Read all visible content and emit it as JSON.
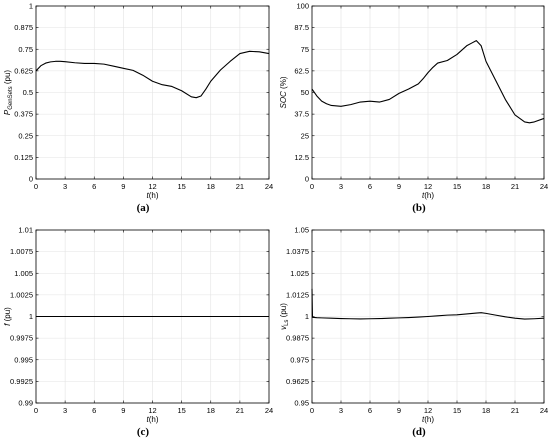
{
  "chart_data": [
    {
      "type": "line",
      "panel_label": "(a)",
      "ylabel": "P_GenSets (pu)",
      "ylabel_main": "P",
      "ylabel_sub": "GenSets",
      "ylabel_unit": " (pu)",
      "xlabel_italic": "t",
      "xlabel_rest": "(h)",
      "xlim": [
        0,
        24
      ],
      "ylim": [
        0,
        1
      ],
      "xticks": [
        0,
        3,
        6,
        9,
        12,
        15,
        18,
        21,
        24
      ],
      "xtick_labels": [
        "0",
        "3",
        "6",
        "9",
        "12",
        "15",
        "18",
        "21",
        "24"
      ],
      "yticks": [
        0,
        0.125,
        0.25,
        0.375,
        0.5,
        0.625,
        0.75,
        0.875,
        1
      ],
      "ytick_labels": [
        "0",
        "0.125",
        "0.25",
        "0.375",
        "0.5",
        "0.625",
        "0.75",
        "0.875",
        "1"
      ],
      "grid": true,
      "series": [
        {
          "x": [
            0,
            0.5,
            1,
            1.5,
            2,
            2.5,
            3,
            4,
            5,
            6,
            7,
            8,
            9,
            10,
            11,
            12,
            13,
            14,
            15,
            16,
            16.5,
            17,
            17.5,
            18,
            19,
            20,
            21,
            22,
            23,
            24
          ],
          "values": [
            0.625,
            0.655,
            0.67,
            0.677,
            0.68,
            0.68,
            0.678,
            0.672,
            0.668,
            0.668,
            0.664,
            0.652,
            0.64,
            0.628,
            0.6,
            0.565,
            0.545,
            0.535,
            0.51,
            0.475,
            0.47,
            0.48,
            0.52,
            0.565,
            0.63,
            0.68,
            0.725,
            0.738,
            0.735,
            0.725
          ]
        }
      ]
    },
    {
      "type": "line",
      "panel_label": "(b)",
      "ylabel": "SOC (%)",
      "ylabel_main": "SOC",
      "ylabel_sub": "",
      "ylabel_unit": " (%)",
      "xlabel_italic": "t",
      "xlabel_rest": "(h)",
      "xlim": [
        0,
        24
      ],
      "ylim": [
        0,
        100
      ],
      "xticks": [
        0,
        3,
        6,
        9,
        12,
        15,
        18,
        21,
        24
      ],
      "xtick_labels": [
        "0",
        "3",
        "6",
        "9",
        "12",
        "15",
        "18",
        "21",
        "24"
      ],
      "yticks": [
        0,
        12.5,
        25,
        37.5,
        50,
        62.5,
        75,
        87.5,
        100
      ],
      "ytick_labels": [
        "0",
        "12.5",
        "25",
        "37.5",
        "50",
        "62.5",
        "75",
        "87.5",
        "100"
      ],
      "grid": true,
      "series": [
        {
          "x": [
            0,
            0.5,
            1,
            1.5,
            2,
            3,
            4,
            5,
            6,
            7,
            8,
            9,
            10,
            11,
            11.5,
            12,
            12.5,
            13,
            14,
            15,
            16,
            16.5,
            17,
            17.5,
            18,
            19,
            20,
            21,
            22,
            22.5,
            23,
            24
          ],
          "values": [
            52,
            48,
            45,
            43.5,
            42.5,
            42,
            43,
            44.5,
            45,
            44.5,
            46,
            49.5,
            52,
            55,
            58,
            61.5,
            64.5,
            67,
            68.5,
            72,
            77,
            78.5,
            80,
            77,
            68,
            57,
            46,
            37,
            33,
            32.5,
            33,
            35
          ]
        }
      ]
    },
    {
      "type": "line",
      "panel_label": "(c)",
      "ylabel": "f (pu)",
      "ylabel_main": "f",
      "ylabel_sub": "",
      "ylabel_unit": " (pu)",
      "xlabel_italic": "t",
      "xlabel_rest": "(h)",
      "xlim": [
        0,
        24
      ],
      "ylim": [
        0.99,
        1.01
      ],
      "xticks": [
        0,
        3,
        6,
        9,
        12,
        15,
        18,
        21,
        24
      ],
      "xtick_labels": [
        "0",
        "3",
        "6",
        "9",
        "12",
        "15",
        "18",
        "21",
        "24"
      ],
      "yticks": [
        0.99,
        0.9925,
        0.995,
        0.9975,
        1,
        1.0025,
        1.005,
        1.0075,
        1.01
      ],
      "ytick_labels": [
        "0.99",
        "0.9925",
        "0.995",
        "0.9975",
        "1",
        "1.0025",
        "1.005",
        "1.0075",
        "1.01"
      ],
      "grid": true,
      "series": [
        {
          "x": [
            0,
            3,
            6,
            9,
            12,
            15,
            18,
            21,
            24
          ],
          "values": [
            1.0,
            1.0,
            1.0,
            1.0,
            1.0,
            1.0,
            1.0,
            1.0,
            1.0
          ]
        }
      ]
    },
    {
      "type": "line",
      "panel_label": "(d)",
      "ylabel": "v_Ls (pu)",
      "ylabel_main": "v",
      "ylabel_sub": "Ls",
      "ylabel_unit": " (pu)",
      "xlabel_italic": "t",
      "xlabel_rest": "(h)",
      "xlim": [
        0,
        24
      ],
      "ylim": [
        0.95,
        1.05
      ],
      "xticks": [
        0,
        3,
        6,
        9,
        12,
        15,
        18,
        21,
        24
      ],
      "xtick_labels": [
        "0",
        "3",
        "6",
        "9",
        "12",
        "15",
        "18",
        "21",
        "24"
      ],
      "yticks": [
        0.95,
        0.9625,
        0.975,
        0.9875,
        1,
        1.0125,
        1.025,
        1.0375,
        1.05
      ],
      "ytick_labels": [
        "0.95",
        "0.9625",
        "0.975",
        "0.9875",
        "1",
        "1.0125",
        "1.025",
        "1.0375",
        "1.05"
      ],
      "grid": true,
      "series": [
        {
          "x": [
            0,
            0.05,
            0.5,
            1,
            2,
            3,
            4,
            5,
            6,
            7,
            8,
            9,
            10,
            11,
            12,
            13,
            14,
            15,
            16,
            17,
            17.5,
            18,
            19,
            20,
            21,
            22,
            23,
            24
          ],
          "values": [
            1.016,
            0.9995,
            0.9993,
            0.9992,
            0.999,
            0.9988,
            0.9987,
            0.9986,
            0.9987,
            0.9988,
            0.999,
            0.9992,
            0.9994,
            0.9997,
            1.0,
            1.0004,
            1.0008,
            1.001,
            1.0015,
            1.002,
            1.0022,
            1.0018,
            1.0008,
            0.9998,
            0.999,
            0.9985,
            0.9987,
            0.999
          ]
        }
      ]
    }
  ]
}
